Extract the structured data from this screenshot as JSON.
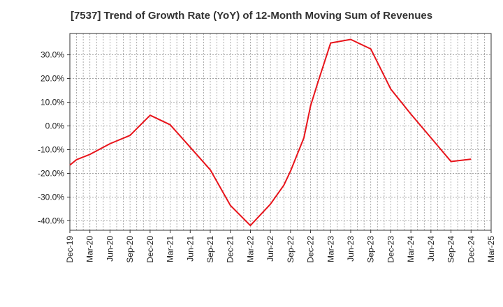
{
  "chart_data": {
    "type": "line",
    "title": "[7537]  Trend of Growth Rate (YoY) of 12-Month Moving Sum of Revenues",
    "xlabel": "",
    "ylabel": "",
    "x": [
      "Dec-19",
      "Mar-20",
      "Jun-20",
      "Sep-20",
      "Dec-20",
      "Mar-21",
      "Jun-21",
      "Sep-21",
      "Dec-21",
      "Mar-22",
      "Jun-22",
      "Sep-22",
      "Dec-22",
      "Mar-23",
      "Jun-23",
      "Sep-23",
      "Dec-23",
      "Mar-24",
      "Jun-24",
      "Sep-24",
      "Dec-24",
      "Mar-25"
    ],
    "ylim": [
      -44,
      39
    ],
    "yticks": [
      30,
      20,
      10,
      0,
      -10,
      -20,
      -30,
      -40
    ],
    "ytick_labels": [
      "30.0%",
      "20.0%",
      "10.0%",
      "0.0%",
      "-10.0%",
      "-20.0%",
      "-30.0%",
      "-40.0%"
    ],
    "grid": true,
    "series": [
      {
        "color": "#e8141b",
        "points": [
          [
            "Dec-19",
            -16.5
          ],
          [
            "Jan-20",
            -14.2
          ],
          [
            "Mar-20",
            -12.0
          ],
          [
            "Jun-20",
            -7.5
          ],
          [
            "Sep-20",
            -4.0
          ],
          [
            "Dec-20",
            4.5
          ],
          [
            "Mar-21",
            0.5
          ],
          [
            "Jun-21",
            -9.0
          ],
          [
            "Sep-21",
            -18.5
          ],
          [
            "Dec-21",
            -33.5
          ],
          [
            "Mar-22",
            -42.0
          ],
          [
            "Jun-22",
            -33.0
          ],
          [
            "Aug-22",
            -25.0
          ],
          [
            "Sep-22",
            -19.0
          ],
          [
            "Nov-22",
            -5.0
          ],
          [
            "Dec-22",
            8.5
          ],
          [
            "Jan-23",
            17.5
          ],
          [
            "Mar-23",
            35.0
          ],
          [
            "Jun-23",
            36.5
          ],
          [
            "Sep-23",
            32.5
          ],
          [
            "Dec-23",
            15.5
          ],
          [
            "Mar-24",
            5.0
          ],
          [
            "Jun-24",
            -5.0
          ],
          [
            "Sep-24",
            -15.0
          ],
          [
            "Dec-24",
            -14.0
          ]
        ]
      }
    ]
  }
}
